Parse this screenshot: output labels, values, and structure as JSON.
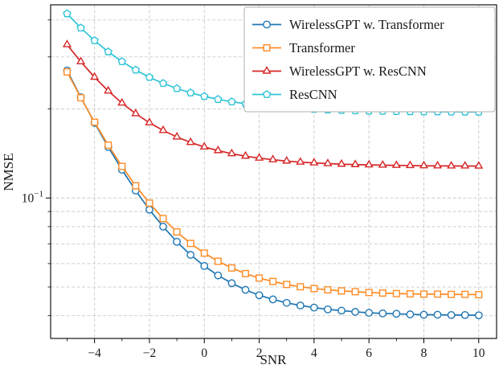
{
  "colors": {
    "background": "#ffffff",
    "frame": "#000000",
    "grid": "#c9c9c9",
    "text": "#1a1a1a",
    "legend_border": "#b0b0b0",
    "marker_face": "#ffffff"
  },
  "chart_data": {
    "type": "line",
    "title": "",
    "xlabel": "SNR",
    "ylabel": "NMSE",
    "y_scale": "log",
    "xlim": [
      -5.6,
      10.65
    ],
    "ylim": [
      0.0335,
      0.45
    ],
    "x_ticks": [
      -4,
      -2,
      0,
      2,
      4,
      6,
      8,
      10
    ],
    "x_tick_labels": [
      "−4",
      "−2",
      "0",
      "2",
      "4",
      "6",
      "8",
      "10"
    ],
    "x_minor_ticks": [
      -5,
      -3,
      -1,
      1,
      3,
      5,
      7,
      9
    ],
    "y_major_tick": {
      "value": 0.1,
      "base": "10",
      "exponent": "−1"
    },
    "y_grid_values": [
      0.4,
      0.3,
      0.2,
      0.1,
      0.09,
      0.08,
      0.07,
      0.06,
      0.05,
      0.04
    ],
    "legend_position": "upper right",
    "x": [
      -5,
      -4.5,
      -4,
      -3.5,
      -3,
      -2.5,
      -2,
      -1.5,
      -1,
      -0.5,
      0,
      0.5,
      1,
      1.5,
      2,
      2.5,
      3,
      3.5,
      4,
      4.5,
      5,
      5.5,
      6,
      6.5,
      7,
      7.5,
      8,
      8.5,
      9,
      9.5,
      10
    ],
    "series": [
      {
        "name": "WirelessGPT w. Transformer",
        "color": "#1f77b4",
        "marker": "circle",
        "values": [
          0.27,
          0.2191,
          0.1795,
          0.1487,
          0.1246,
          0.1059,
          0.0913,
          0.08,
          0.0711,
          0.0642,
          0.0589,
          0.0547,
          0.0515,
          0.0489,
          0.0469,
          0.0454,
          0.0442,
          0.0433,
          0.0426,
          0.042,
          0.0416,
          0.0412,
          0.0409,
          0.0407,
          0.0406,
          0.0404,
          0.0403,
          0.0403,
          0.0402,
          0.0402,
          0.0401
        ]
      },
      {
        "name": "Transformer",
        "color": "#ff8c26",
        "marker": "square",
        "values": [
          0.267,
          0.2183,
          0.1804,
          0.1509,
          0.1279,
          0.11,
          0.0961,
          0.0852,
          0.0768,
          0.0702,
          0.0651,
          0.0611,
          0.058,
          0.0555,
          0.0536,
          0.0522,
          0.051,
          0.0501,
          0.0494,
          0.0489,
          0.0485,
          0.0482,
          0.0479,
          0.0477,
          0.0475,
          0.0474,
          0.0473,
          0.0473,
          0.0472,
          0.0472,
          0.0471
        ]
      },
      {
        "name": "WirelessGPT w. ResCNN",
        "color": "#d62728",
        "marker": "triangle",
        "values": [
          0.33,
          0.2889,
          0.2562,
          0.2301,
          0.2094,
          0.1928,
          0.1797,
          0.1692,
          0.1608,
          0.1541,
          0.1488,
          0.1446,
          0.1412,
          0.1385,
          0.1364,
          0.1347,
          0.1333,
          0.1322,
          0.1314,
          0.1307,
          0.1301,
          0.1297,
          0.1294,
          0.1291,
          0.1289,
          0.1287,
          0.1285,
          0.1284,
          0.1283,
          0.1283,
          0.1282
        ]
      },
      {
        "name": "ResCNN",
        "color": "#2ec4d6",
        "marker": "pentagon",
        "values": [
          0.42,
          0.376,
          0.3407,
          0.3122,
          0.2893,
          0.2709,
          0.256,
          0.2441,
          0.2345,
          0.2268,
          0.2206,
          0.2156,
          0.2116,
          0.2083,
          0.2057,
          0.2036,
          0.202,
          0.2006,
          0.1995,
          0.1986,
          0.1979,
          0.1973,
          0.1969,
          0.1965,
          0.1962,
          0.196,
          0.1958,
          0.1956,
          0.1955,
          0.1954,
          0.1953
        ]
      }
    ]
  }
}
